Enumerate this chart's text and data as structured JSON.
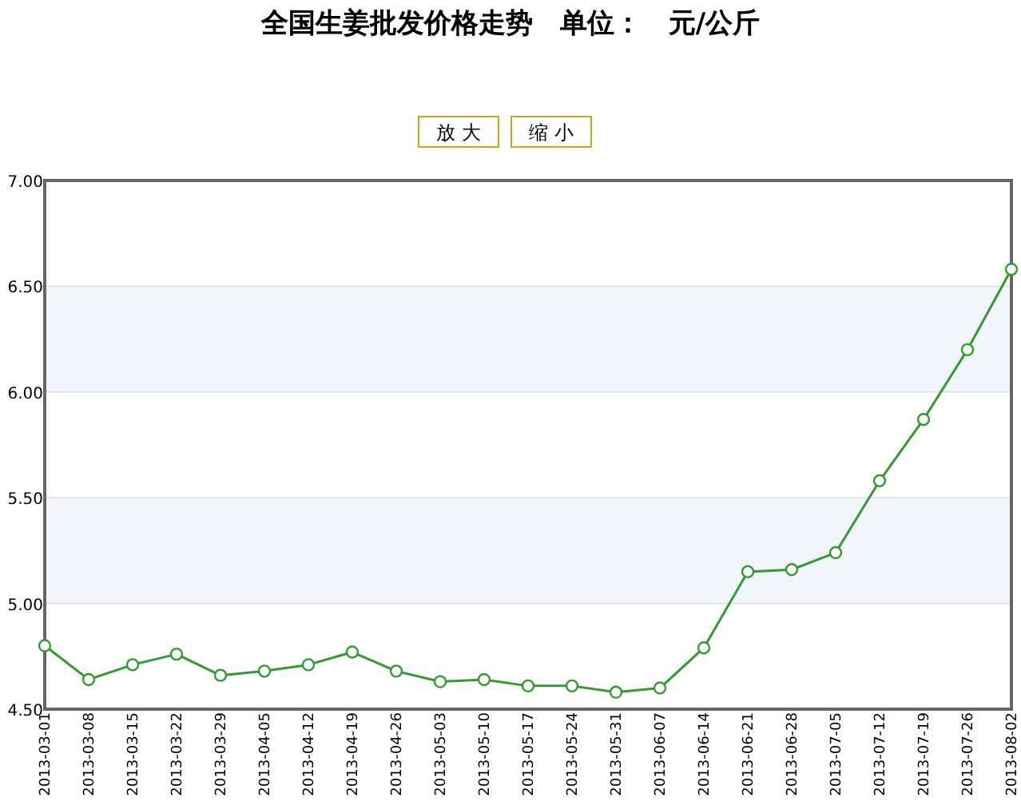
{
  "chart_data": {
    "type": "line",
    "title": "全国生姜批发价格走势　单位：　元/公斤",
    "annotations": [
      "放 大",
      "缩 小"
    ],
    "categories": [
      "2013-03-01",
      "2013-03-08",
      "2013-03-15",
      "2013-03-22",
      "2013-03-29",
      "2013-04-05",
      "2013-04-12",
      "2013-04-19",
      "2013-04-26",
      "2013-05-03",
      "2013-05-10",
      "2013-05-17",
      "2013-05-24",
      "2013-05-31",
      "2013-06-07",
      "2013-06-14",
      "2013-06-21",
      "2013-06-28",
      "2013-07-05",
      "2013-07-12",
      "2013-07-19",
      "2013-07-26",
      "2013-08-02"
    ],
    "series": [
      {
        "color": "#339933",
        "values": [
          4.8,
          4.64,
          4.71,
          4.76,
          4.66,
          4.68,
          4.71,
          4.77,
          4.68,
          4.63,
          4.64,
          4.61,
          4.61,
          4.58,
          4.6,
          4.79,
          5.15,
          5.16,
          5.24,
          5.58,
          5.87,
          6.2,
          6.58
        ]
      }
    ],
    "ylim": [
      4.5,
      7.0
    ],
    "yticks": [
      {
        "value": 4.5,
        "label": "4.50"
      },
      {
        "value": 5.0,
        "label": "5.00"
      },
      {
        "value": 5.5,
        "label": "5.50"
      },
      {
        "value": 6.0,
        "label": "6.00"
      },
      {
        "value": 6.5,
        "label": "6.50"
      },
      {
        "value": 7.0,
        "label": "7.00"
      }
    ],
    "bands": [
      {
        "axis": "y",
        "from": 5.0,
        "to": 5.5,
        "color": "#f2f6fc"
      },
      {
        "axis": "y",
        "from": 6.0,
        "to": 6.5,
        "color": "#f2f6fc"
      }
    ],
    "grid": "y",
    "marker": "circle",
    "line_style": "solid"
  }
}
